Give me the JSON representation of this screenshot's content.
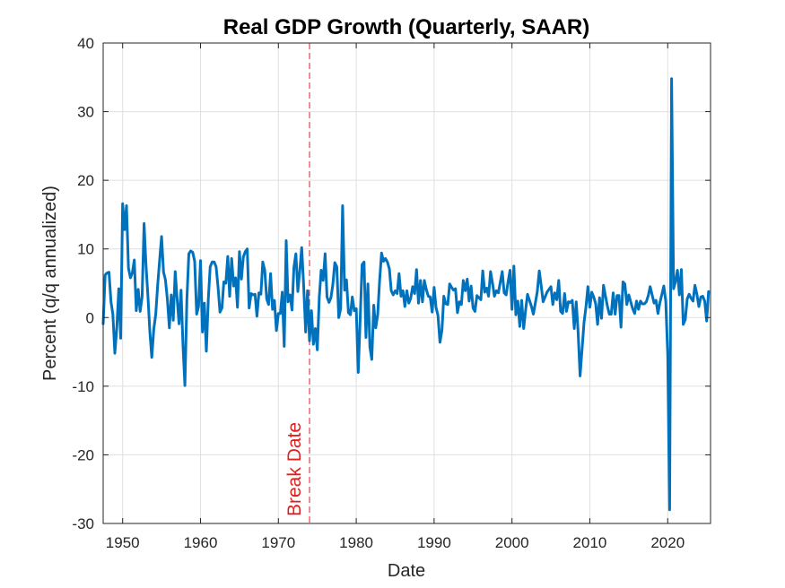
{
  "chart_data": {
    "type": "line",
    "title": "Real GDP Growth (Quarterly, SAAR)",
    "xlabel": "Date",
    "ylabel": "Percent (q/q annualized)",
    "xlim": [
      1947.5,
      2025.5
    ],
    "ylim": [
      -30,
      40
    ],
    "x_ticks": [
      1950,
      1960,
      1970,
      1980,
      1990,
      2000,
      2010,
      2020
    ],
    "y_ticks": [
      -30,
      -20,
      -10,
      0,
      10,
      20,
      30,
      40
    ],
    "grid": true,
    "series_color": "#0072BD",
    "annotation_color": "#E21F1F",
    "break_date": 1974.0,
    "break_label": "Break Date",
    "series": [
      {
        "name": "Real GDP growth",
        "points": [
          [
            1947.5,
            -0.9
          ],
          [
            1947.75,
            6.2
          ],
          [
            1948.0,
            6.5
          ],
          [
            1948.25,
            6.6
          ],
          [
            1948.5,
            2.3
          ],
          [
            1948.75,
            0.5
          ],
          [
            1949.0,
            -5.2
          ],
          [
            1949.25,
            -1.5
          ],
          [
            1949.5,
            4.2
          ],
          [
            1949.75,
            -3.0
          ],
          [
            1950.0,
            16.6
          ],
          [
            1950.25,
            12.8
          ],
          [
            1950.5,
            16.3
          ],
          [
            1950.75,
            7.2
          ],
          [
            1951.0,
            5.8
          ],
          [
            1951.25,
            6.5
          ],
          [
            1951.5,
            8.4
          ],
          [
            1951.75,
            1.0
          ],
          [
            1952.0,
            4.1
          ],
          [
            1952.25,
            0.9
          ],
          [
            1952.5,
            3.0
          ],
          [
            1952.75,
            13.7
          ],
          [
            1953.0,
            7.7
          ],
          [
            1953.25,
            3.1
          ],
          [
            1953.5,
            -2.2
          ],
          [
            1953.75,
            -5.8
          ],
          [
            1954.0,
            -1.7
          ],
          [
            1954.25,
            0.5
          ],
          [
            1954.5,
            4.8
          ],
          [
            1954.75,
            8.3
          ],
          [
            1955.0,
            11.8
          ],
          [
            1955.25,
            6.6
          ],
          [
            1955.5,
            5.5
          ],
          [
            1955.75,
            2.6
          ],
          [
            1956.0,
            -1.5
          ],
          [
            1956.25,
            3.3
          ],
          [
            1956.5,
            -0.4
          ],
          [
            1956.75,
            6.7
          ],
          [
            1957.0,
            2.6
          ],
          [
            1957.25,
            -0.9
          ],
          [
            1957.5,
            4.0
          ],
          [
            1957.75,
            -4.2
          ],
          [
            1958.0,
            -9.9
          ],
          [
            1958.25,
            2.6
          ],
          [
            1958.5,
            9.3
          ],
          [
            1958.75,
            9.7
          ],
          [
            1959.0,
            9.5
          ],
          [
            1959.25,
            8.2
          ],
          [
            1959.5,
            0.5
          ],
          [
            1959.75,
            1.6
          ],
          [
            1960.0,
            8.3
          ],
          [
            1960.25,
            -2.1
          ],
          [
            1960.5,
            2.1
          ],
          [
            1960.75,
            -4.9
          ],
          [
            1961.0,
            2.7
          ],
          [
            1961.25,
            7.4
          ],
          [
            1961.5,
            8.1
          ],
          [
            1961.75,
            8.1
          ],
          [
            1962.0,
            7.4
          ],
          [
            1962.25,
            4.5
          ],
          [
            1962.5,
            0.8
          ],
          [
            1962.75,
            1.4
          ],
          [
            1963.0,
            5.2
          ],
          [
            1963.25,
            5.0
          ],
          [
            1963.5,
            8.9
          ],
          [
            1963.75,
            3.1
          ],
          [
            1964.0,
            8.6
          ],
          [
            1964.25,
            4.6
          ],
          [
            1964.5,
            5.8
          ],
          [
            1964.75,
            1.5
          ],
          [
            1965.0,
            9.6
          ],
          [
            1965.25,
            5.6
          ],
          [
            1965.5,
            8.8
          ],
          [
            1965.75,
            9.6
          ],
          [
            1966.0,
            10.0
          ],
          [
            1966.25,
            1.4
          ],
          [
            1966.5,
            3.5
          ],
          [
            1966.75,
            3.3
          ],
          [
            1967.0,
            3.4
          ],
          [
            1967.25,
            0.2
          ],
          [
            1967.5,
            3.6
          ],
          [
            1967.75,
            3.4
          ],
          [
            1968.0,
            8.1
          ],
          [
            1968.25,
            6.9
          ],
          [
            1968.5,
            2.7
          ],
          [
            1968.75,
            1.9
          ],
          [
            1969.0,
            6.4
          ],
          [
            1969.25,
            1.2
          ],
          [
            1969.5,
            2.5
          ],
          [
            1969.75,
            -1.9
          ],
          [
            1970.0,
            0.6
          ],
          [
            1970.25,
            0.6
          ],
          [
            1970.5,
            3.7
          ],
          [
            1970.75,
            -4.2
          ],
          [
            1971.0,
            11.2
          ],
          [
            1971.25,
            2.3
          ],
          [
            1971.5,
            3.3
          ],
          [
            1971.75,
            1.1
          ],
          [
            1972.0,
            7.3
          ],
          [
            1972.25,
            9.3
          ],
          [
            1972.5,
            3.8
          ],
          [
            1972.75,
            6.9
          ],
          [
            1973.0,
            10.2
          ],
          [
            1973.25,
            4.6
          ],
          [
            1973.5,
            -2.1
          ],
          [
            1973.75,
            3.9
          ],
          [
            1974.0,
            -3.4
          ],
          [
            1974.25,
            1.0
          ],
          [
            1974.5,
            -3.9
          ],
          [
            1974.75,
            -1.6
          ],
          [
            1975.0,
            -4.7
          ],
          [
            1975.25,
            3.0
          ],
          [
            1975.5,
            6.9
          ],
          [
            1975.75,
            5.4
          ],
          [
            1976.0,
            9.3
          ],
          [
            1976.25,
            3.0
          ],
          [
            1976.5,
            2.2
          ],
          [
            1976.75,
            2.9
          ],
          [
            1977.0,
            4.8
          ],
          [
            1977.25,
            8.0
          ],
          [
            1977.5,
            7.4
          ],
          [
            1977.75,
            0.0
          ],
          [
            1978.0,
            1.3
          ],
          [
            1978.25,
            16.3
          ],
          [
            1978.5,
            4.0
          ],
          [
            1978.75,
            5.5
          ],
          [
            1979.0,
            0.7
          ],
          [
            1979.25,
            0.4
          ],
          [
            1979.5,
            3.0
          ],
          [
            1979.75,
            1.0
          ],
          [
            1980.0,
            1.3
          ],
          [
            1980.25,
            -8.0
          ],
          [
            1980.5,
            -0.5
          ],
          [
            1980.75,
            7.7
          ],
          [
            1981.0,
            8.1
          ],
          [
            1981.25,
            -2.9
          ],
          [
            1981.5,
            4.9
          ],
          [
            1981.75,
            -4.3
          ],
          [
            1982.0,
            -6.1
          ],
          [
            1982.25,
            1.8
          ],
          [
            1982.5,
            -1.5
          ],
          [
            1982.75,
            0.4
          ],
          [
            1983.0,
            5.3
          ],
          [
            1983.25,
            9.4
          ],
          [
            1983.5,
            8.2
          ],
          [
            1983.75,
            8.6
          ],
          [
            1984.0,
            8.1
          ],
          [
            1984.25,
            7.1
          ],
          [
            1984.5,
            3.9
          ],
          [
            1984.75,
            3.3
          ],
          [
            1985.0,
            3.9
          ],
          [
            1985.25,
            3.5
          ],
          [
            1985.5,
            6.4
          ],
          [
            1985.75,
            3.1
          ],
          [
            1986.0,
            3.9
          ],
          [
            1986.25,
            1.6
          ],
          [
            1986.5,
            3.9
          ],
          [
            1986.75,
            2.1
          ],
          [
            1987.0,
            2.8
          ],
          [
            1987.25,
            4.5
          ],
          [
            1987.5,
            3.5
          ],
          [
            1987.75,
            7.0
          ],
          [
            1988.0,
            2.1
          ],
          [
            1988.25,
            5.4
          ],
          [
            1988.5,
            2.3
          ],
          [
            1988.75,
            5.4
          ],
          [
            1989.0,
            4.1
          ],
          [
            1989.25,
            3.1
          ],
          [
            1989.5,
            3.0
          ],
          [
            1989.75,
            0.8
          ],
          [
            1990.0,
            4.4
          ],
          [
            1990.25,
            1.5
          ],
          [
            1990.5,
            0.3
          ],
          [
            1990.75,
            -3.6
          ],
          [
            1991.0,
            -1.9
          ],
          [
            1991.25,
            3.1
          ],
          [
            1991.5,
            2.0
          ],
          [
            1991.75,
            1.9
          ],
          [
            1992.0,
            4.9
          ],
          [
            1992.25,
            4.4
          ],
          [
            1992.5,
            4.0
          ],
          [
            1992.75,
            4.2
          ],
          [
            1993.0,
            0.7
          ],
          [
            1993.25,
            2.3
          ],
          [
            1993.5,
            1.9
          ],
          [
            1993.75,
            5.4
          ],
          [
            1994.0,
            3.9
          ],
          [
            1994.25,
            5.6
          ],
          [
            1994.5,
            2.4
          ],
          [
            1994.75,
            4.6
          ],
          [
            1995.0,
            1.4
          ],
          [
            1995.25,
            0.9
          ],
          [
            1995.5,
            3.2
          ],
          [
            1995.75,
            2.9
          ],
          [
            1996.0,
            2.6
          ],
          [
            1996.25,
            6.8
          ],
          [
            1996.5,
            3.7
          ],
          [
            1996.75,
            4.3
          ],
          [
            1997.0,
            3.1
          ],
          [
            1997.25,
            6.7
          ],
          [
            1997.5,
            5.0
          ],
          [
            1997.75,
            3.1
          ],
          [
            1998.0,
            3.9
          ],
          [
            1998.25,
            3.6
          ],
          [
            1998.5,
            5.2
          ],
          [
            1998.75,
            6.7
          ],
          [
            1999.0,
            3.6
          ],
          [
            1999.25,
            3.3
          ],
          [
            1999.5,
            5.2
          ],
          [
            1999.75,
            6.9
          ],
          [
            2000.0,
            1.2
          ],
          [
            2000.25,
            7.5
          ],
          [
            2000.5,
            0.4
          ],
          [
            2000.75,
            2.4
          ],
          [
            2001.0,
            -1.3
          ],
          [
            2001.25,
            2.5
          ],
          [
            2001.5,
            -1.6
          ],
          [
            2001.75,
            1.1
          ],
          [
            2002.0,
            3.4
          ],
          [
            2002.25,
            2.5
          ],
          [
            2002.5,
            1.6
          ],
          [
            2002.75,
            0.5
          ],
          [
            2003.0,
            2.1
          ],
          [
            2003.25,
            3.8
          ],
          [
            2003.5,
            6.8
          ],
          [
            2003.75,
            4.7
          ],
          [
            2004.0,
            2.3
          ],
          [
            2004.25,
            3.0
          ],
          [
            2004.5,
            3.7
          ],
          [
            2004.75,
            4.1
          ],
          [
            2005.0,
            4.5
          ],
          [
            2005.25,
            1.9
          ],
          [
            2005.5,
            3.6
          ],
          [
            2005.75,
            2.6
          ],
          [
            2006.0,
            5.4
          ],
          [
            2006.25,
            0.9
          ],
          [
            2006.5,
            0.6
          ],
          [
            2006.75,
            3.5
          ],
          [
            2007.0,
            0.9
          ],
          [
            2007.25,
            2.3
          ],
          [
            2007.5,
            2.2
          ],
          [
            2007.75,
            2.5
          ],
          [
            2008.0,
            -1.6
          ],
          [
            2008.25,
            2.3
          ],
          [
            2008.5,
            -2.1
          ],
          [
            2008.75,
            -8.5
          ],
          [
            2009.0,
            -4.6
          ],
          [
            2009.25,
            -0.7
          ],
          [
            2009.5,
            1.5
          ],
          [
            2009.75,
            4.5
          ],
          [
            2010.0,
            1.5
          ],
          [
            2010.25,
            3.7
          ],
          [
            2010.5,
            3.0
          ],
          [
            2010.75,
            2.0
          ],
          [
            2011.0,
            -1.0
          ],
          [
            2011.25,
            2.9
          ],
          [
            2011.5,
            -0.1
          ],
          [
            2011.75,
            4.7
          ],
          [
            2012.0,
            3.2
          ],
          [
            2012.25,
            1.7
          ],
          [
            2012.5,
            0.5
          ],
          [
            2012.75,
            0.5
          ],
          [
            2013.0,
            3.6
          ],
          [
            2013.25,
            0.5
          ],
          [
            2013.5,
            3.2
          ],
          [
            2013.75,
            3.2
          ],
          [
            2014.0,
            -1.4
          ],
          [
            2014.25,
            5.2
          ],
          [
            2014.5,
            4.9
          ],
          [
            2014.75,
            1.9
          ],
          [
            2015.0,
            3.3
          ],
          [
            2015.25,
            2.3
          ],
          [
            2015.5,
            1.3
          ],
          [
            2015.75,
            0.6
          ],
          [
            2016.0,
            2.4
          ],
          [
            2016.25,
            1.2
          ],
          [
            2016.5,
            2.4
          ],
          [
            2016.75,
            2.0
          ],
          [
            2017.0,
            2.0
          ],
          [
            2017.25,
            2.3
          ],
          [
            2017.5,
            3.2
          ],
          [
            2017.75,
            4.5
          ],
          [
            2018.0,
            3.3
          ],
          [
            2018.25,
            2.1
          ],
          [
            2018.5,
            2.5
          ],
          [
            2018.75,
            0.6
          ],
          [
            2019.0,
            2.2
          ],
          [
            2019.25,
            3.4
          ],
          [
            2019.5,
            4.6
          ],
          [
            2019.75,
            2.4
          ],
          [
            2020.0,
            -5.5
          ],
          [
            2020.25,
            -28.0
          ],
          [
            2020.5,
            34.8
          ],
          [
            2020.75,
            4.2
          ],
          [
            2021.0,
            5.2
          ],
          [
            2021.25,
            6.9
          ],
          [
            2021.5,
            3.3
          ],
          [
            2021.75,
            7.0
          ],
          [
            2022.0,
            -1.0
          ],
          [
            2022.25,
            -0.3
          ],
          [
            2022.5,
            2.7
          ],
          [
            2022.75,
            3.4
          ],
          [
            2023.0,
            2.8
          ],
          [
            2023.25,
            2.4
          ],
          [
            2023.5,
            4.7
          ],
          [
            2023.75,
            3.4
          ],
          [
            2024.0,
            1.6
          ],
          [
            2024.25,
            3.0
          ],
          [
            2024.5,
            3.1
          ],
          [
            2024.75,
            2.4
          ],
          [
            2025.0,
            -0.5
          ],
          [
            2025.25,
            3.8
          ]
        ]
      }
    ]
  }
}
